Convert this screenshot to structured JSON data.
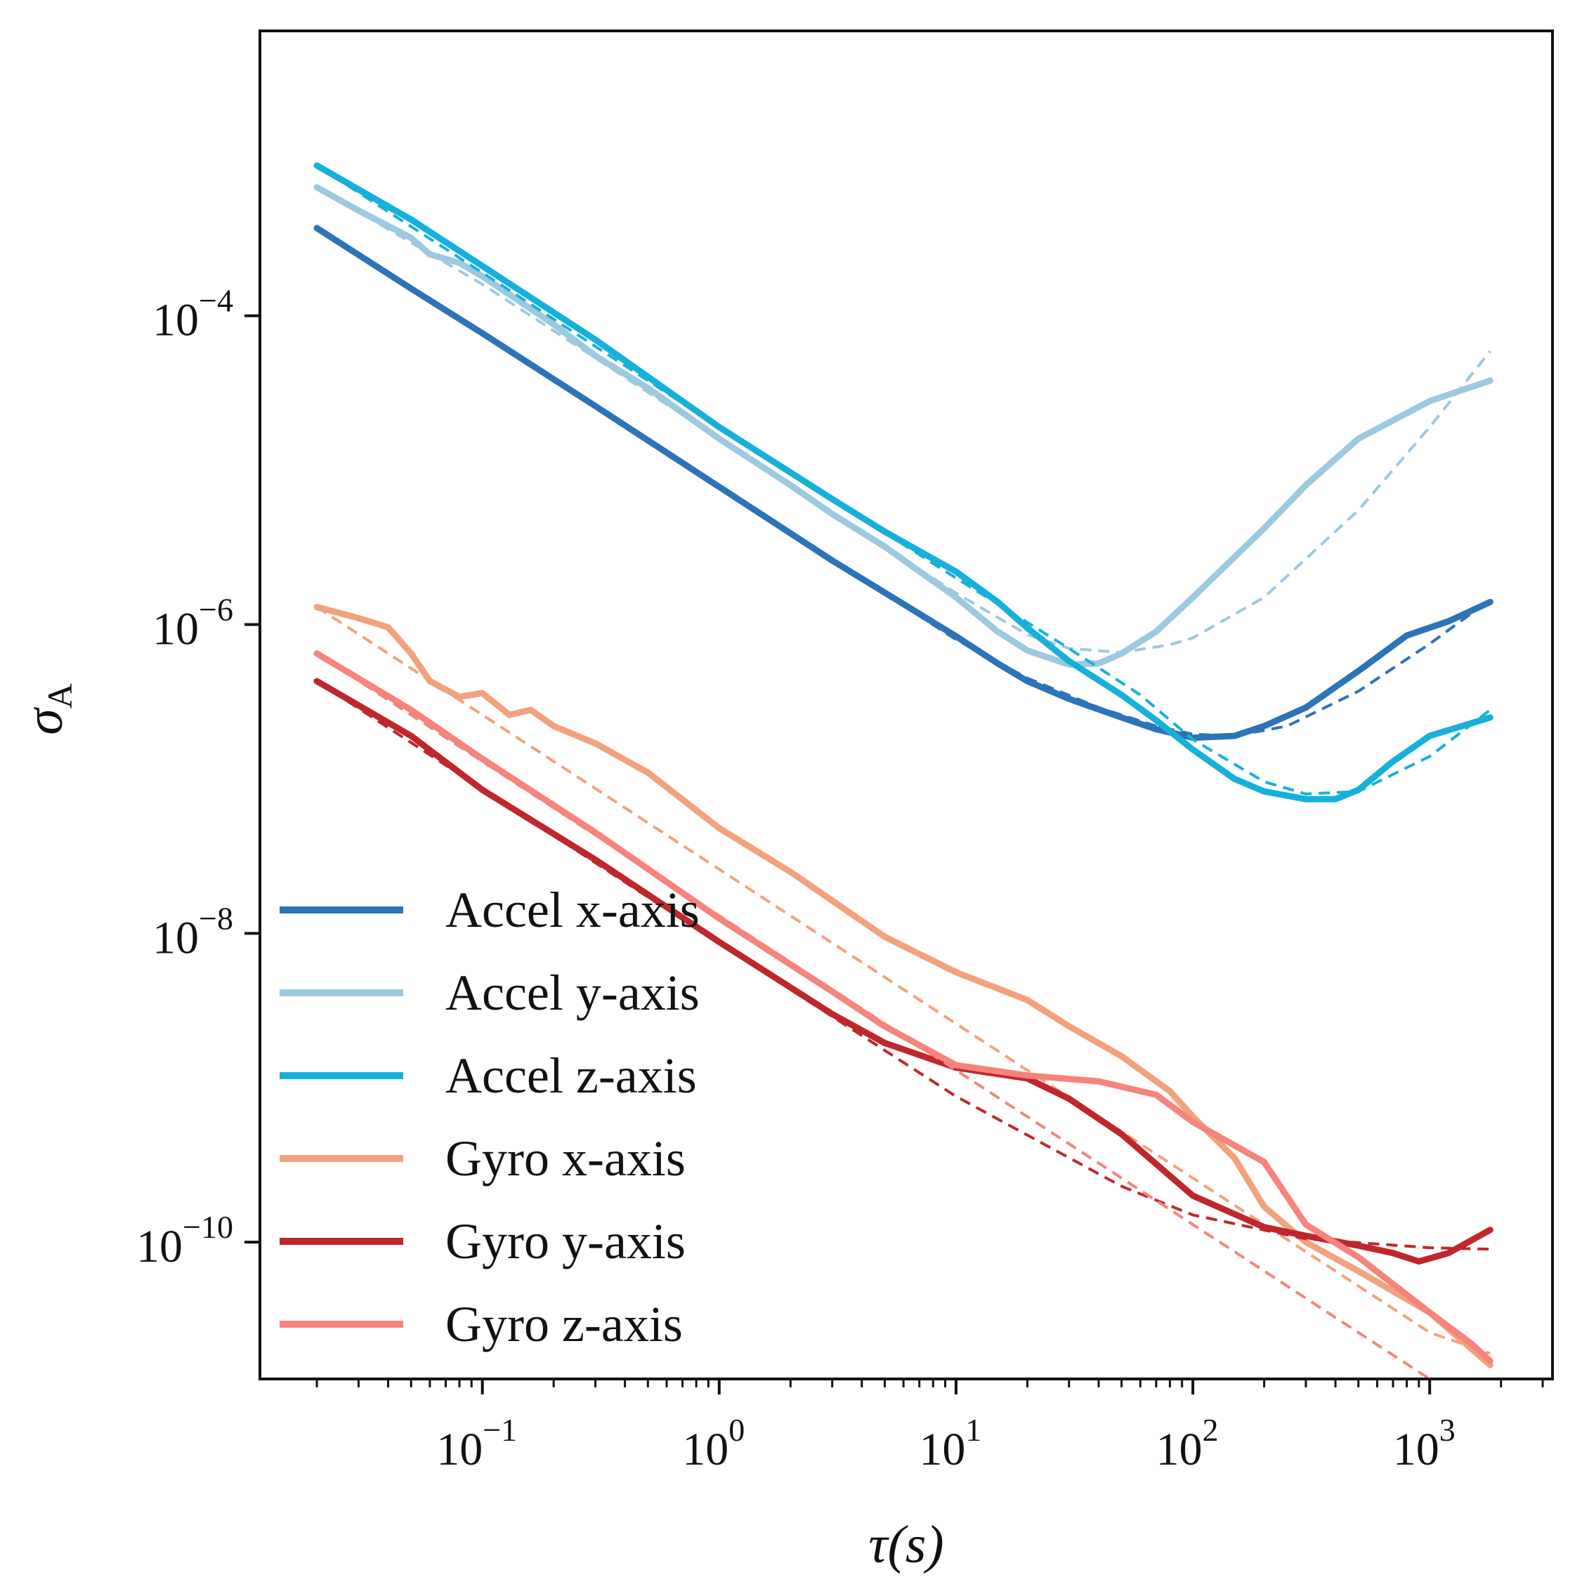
{
  "chart_data": {
    "type": "line",
    "xlabel": "τ(s)",
    "ylabel": "σ",
    "ylabel_sub": "A",
    "xscale": "log",
    "yscale": "log",
    "xlim": [
      0.0115,
      3300
    ],
    "ylim": [
      1.3e-11,
      0.007
    ],
    "grid": false,
    "legend_position": "lower-left",
    "x_ticks": [
      {
        "value": 0.1,
        "base": "10",
        "exp": "−1"
      },
      {
        "value": 1,
        "base": "10",
        "exp": "0"
      },
      {
        "value": 10,
        "base": "10",
        "exp": "1"
      },
      {
        "value": 100,
        "base": "10",
        "exp": "2"
      },
      {
        "value": 1000,
        "base": "10",
        "exp": "3"
      }
    ],
    "y_ticks": [
      {
        "value": 0.0001,
        "base": "10",
        "exp": "−4"
      },
      {
        "value": 1e-06,
        "base": "10",
        "exp": "−6"
      },
      {
        "value": 1e-08,
        "base": "10",
        "exp": "−8"
      },
      {
        "value": 1e-10,
        "base": "10",
        "exp": "−10"
      }
    ],
    "series": [
      {
        "name": "Accel x-axis",
        "color": "#2c73b8",
        "points": [
          [
            0.02,
            0.00037
          ],
          [
            0.05,
            0.00015
          ],
          [
            0.1,
            7.7e-05
          ],
          [
            0.3,
            2.6e-05
          ],
          [
            1,
            7.8e-06
          ],
          [
            3,
            2.6e-06
          ],
          [
            10,
            8.4e-07
          ],
          [
            15,
            5.6e-07
          ],
          [
            20,
            4.3e-07
          ],
          [
            30,
            3.3e-07
          ],
          [
            50,
            2.5e-07
          ],
          [
            70,
            2.1e-07
          ],
          [
            100,
            1.85e-07
          ],
          [
            150,
            1.9e-07
          ],
          [
            200,
            2.2e-07
          ],
          [
            300,
            2.9e-07
          ],
          [
            500,
            5e-07
          ],
          [
            800,
            8.5e-07
          ],
          [
            1200,
            1.05e-06
          ],
          [
            1800,
            1.4e-06
          ]
        ],
        "fit": [
          [
            0.02,
            0.00037
          ],
          [
            0.1,
            7.7e-05
          ],
          [
            1,
            7.8e-06
          ],
          [
            10,
            8e-07
          ],
          [
            20,
            4.5e-07
          ],
          [
            40,
            2.9e-07
          ],
          [
            70,
            2.2e-07
          ],
          [
            100,
            1.95e-07
          ],
          [
            150,
            1.9e-07
          ],
          [
            250,
            2.2e-07
          ],
          [
            500,
            3.7e-07
          ],
          [
            1000,
            7.5e-07
          ],
          [
            1800,
            1.45e-06
          ]
        ]
      },
      {
        "name": "Accel y-axis",
        "color": "#9cc9df",
        "points": [
          [
            0.02,
            0.00068
          ],
          [
            0.03,
            0.00048
          ],
          [
            0.05,
            0.00032
          ],
          [
            0.06,
            0.00025
          ],
          [
            0.08,
            0.00022
          ],
          [
            0.1,
            0.00018
          ],
          [
            0.2,
            8.8e-05
          ],
          [
            0.3,
            5.5e-05
          ],
          [
            0.5,
            3.4e-05
          ],
          [
            1,
            1.6e-05
          ],
          [
            2,
            8e-06
          ],
          [
            3,
            5.2e-06
          ],
          [
            5,
            3.2e-06
          ],
          [
            10,
            1.5e-06
          ],
          [
            15,
            9e-07
          ],
          [
            20,
            6.8e-07
          ],
          [
            30,
            5.5e-07
          ],
          [
            40,
            5.6e-07
          ],
          [
            50,
            6.5e-07
          ],
          [
            70,
            9e-07
          ],
          [
            100,
            1.5e-06
          ],
          [
            200,
            4.2e-06
          ],
          [
            300,
            8e-06
          ],
          [
            500,
            1.6e-05
          ],
          [
            1000,
            2.8e-05
          ],
          [
            1800,
            3.8e-05
          ]
        ],
        "fit": [
          [
            0.02,
            0.00068
          ],
          [
            0.1,
            0.00016
          ],
          [
            1,
            1.6e-05
          ],
          [
            10,
            1.6e-06
          ],
          [
            20,
            8.6e-07
          ],
          [
            30,
            7e-07
          ],
          [
            50,
            6.6e-07
          ],
          [
            80,
            7.4e-07
          ],
          [
            100,
            8.2e-07
          ],
          [
            200,
            1.5e-06
          ],
          [
            500,
            5.5e-06
          ],
          [
            1000,
            1.9e-05
          ],
          [
            1800,
            5.9e-05
          ]
        ]
      },
      {
        "name": "Accel z-axis",
        "color": "#16b1db",
        "points": [
          [
            0.02,
            0.00094
          ],
          [
            0.05,
            0.00042
          ],
          [
            0.1,
            0.00021
          ],
          [
            0.3,
            7e-05
          ],
          [
            1,
            1.9e-05
          ],
          [
            3,
            6.5e-06
          ],
          [
            5,
            4e-06
          ],
          [
            10,
            2.2e-06
          ],
          [
            15,
            1.4e-06
          ],
          [
            20,
            9.5e-07
          ],
          [
            30,
            5.8e-07
          ],
          [
            50,
            3.5e-07
          ],
          [
            70,
            2.4e-07
          ],
          [
            100,
            1.55e-07
          ],
          [
            150,
            1e-07
          ],
          [
            200,
            8.3e-08
          ],
          [
            300,
            7.4e-08
          ],
          [
            400,
            7.4e-08
          ],
          [
            500,
            8.5e-08
          ],
          [
            700,
            1.3e-07
          ],
          [
            1000,
            1.9e-07
          ],
          [
            1800,
            2.5e-07
          ]
        ],
        "fit": [
          [
            0.02,
            0.00094
          ],
          [
            0.1,
            0.00019
          ],
          [
            1,
            1.9e-05
          ],
          [
            10,
            2e-06
          ],
          [
            30,
            7e-07
          ],
          [
            60,
            3.5e-07
          ],
          [
            100,
            1.8e-07
          ],
          [
            200,
            9.6e-08
          ],
          [
            300,
            8e-08
          ],
          [
            500,
            8.3e-08
          ],
          [
            1000,
            1.4e-07
          ],
          [
            1800,
            2.8e-07
          ]
        ]
      },
      {
        "name": "Gyro x-axis",
        "color": "#f3a27e",
        "points": [
          [
            0.02,
            1.3e-06
          ],
          [
            0.03,
            1.1e-06
          ],
          [
            0.04,
            9.6e-07
          ],
          [
            0.05,
            6.5e-07
          ],
          [
            0.06,
            4.3e-07
          ],
          [
            0.08,
            3.4e-07
          ],
          [
            0.1,
            3.6e-07
          ],
          [
            0.13,
            2.6e-07
          ],
          [
            0.16,
            2.8e-07
          ],
          [
            0.2,
            2.2e-07
          ],
          [
            0.3,
            1.7e-07
          ],
          [
            0.5,
            1.1e-07
          ],
          [
            1,
            4.8e-08
          ],
          [
            2,
            2.5e-08
          ],
          [
            5,
            9.5e-09
          ],
          [
            10,
            5.6e-09
          ],
          [
            20,
            3.7e-09
          ],
          [
            30,
            2.5e-09
          ],
          [
            50,
            1.6e-09
          ],
          [
            80,
            9.5e-10
          ],
          [
            100,
            6.5e-10
          ],
          [
            150,
            3.5e-10
          ],
          [
            200,
            1.7e-10
          ],
          [
            300,
            1e-10
          ],
          [
            500,
            6.5e-11
          ],
          [
            1000,
            3.5e-11
          ],
          [
            1800,
            1.6e-11
          ]
        ],
        "fit": [
          [
            0.02,
            1.3e-06
          ],
          [
            0.1,
            2.6e-07
          ],
          [
            1,
            2.6e-08
          ],
          [
            10,
            2.6e-09
          ],
          [
            100,
            2.6e-10
          ],
          [
            1000,
            2.6e-11
          ],
          [
            1800,
            1.9e-11
          ]
        ]
      },
      {
        "name": "Gyro y-axis",
        "color": "#c0272d",
        "points": [
          [
            0.02,
            4.3e-07
          ],
          [
            0.05,
            1.9e-07
          ],
          [
            0.1,
            8.5e-08
          ],
          [
            0.3,
            3e-08
          ],
          [
            1,
            8.8e-09
          ],
          [
            3,
            3e-09
          ],
          [
            5,
            1.95e-09
          ],
          [
            10,
            1.35e-09
          ],
          [
            20,
            1.15e-09
          ],
          [
            30,
            8.5e-10
          ],
          [
            50,
            5e-10
          ],
          [
            100,
            2e-10
          ],
          [
            200,
            1.25e-10
          ],
          [
            300,
            1.1e-10
          ],
          [
            500,
            9.5e-11
          ],
          [
            700,
            8.5e-11
          ],
          [
            900,
            7.5e-11
          ],
          [
            1200,
            8.5e-11
          ],
          [
            1800,
            1.2e-10
          ]
        ],
        "fit": [
          [
            0.02,
            4.3e-07
          ],
          [
            0.1,
            8.6e-08
          ],
          [
            1,
            8.6e-09
          ],
          [
            10,
            8.8e-10
          ],
          [
            50,
            2.3e-10
          ],
          [
            100,
            1.5e-10
          ],
          [
            300,
            1.05e-10
          ],
          [
            1000,
            9.2e-11
          ],
          [
            1800,
            9e-11
          ]
        ]
      },
      {
        "name": "Gyro z-axis",
        "color": "#f7837d",
        "points": [
          [
            0.02,
            6.5e-07
          ],
          [
            0.05,
            2.8e-07
          ],
          [
            0.1,
            1.35e-07
          ],
          [
            0.3,
            4.5e-08
          ],
          [
            1,
            1.25e-08
          ],
          [
            3,
            4.2e-09
          ],
          [
            5,
            2.5e-09
          ],
          [
            10,
            1.4e-09
          ],
          [
            20,
            1.2e-09
          ],
          [
            40,
            1.1e-09
          ],
          [
            70,
            9e-10
          ],
          [
            100,
            6e-10
          ],
          [
            200,
            3.3e-10
          ],
          [
            300,
            1.3e-10
          ],
          [
            500,
            8e-11
          ],
          [
            1000,
            3.5e-11
          ],
          [
            1500,
            2.2e-11
          ],
          [
            1800,
            1.7e-11
          ]
        ],
        "fit": [
          [
            0.02,
            6.5e-07
          ],
          [
            0.1,
            1.3e-07
          ],
          [
            1,
            1.3e-08
          ],
          [
            10,
            1.3e-09
          ],
          [
            100,
            1.3e-10
          ],
          [
            1000,
            1.3e-11
          ],
          [
            1800,
            1.2e-11
          ]
        ]
      }
    ]
  }
}
